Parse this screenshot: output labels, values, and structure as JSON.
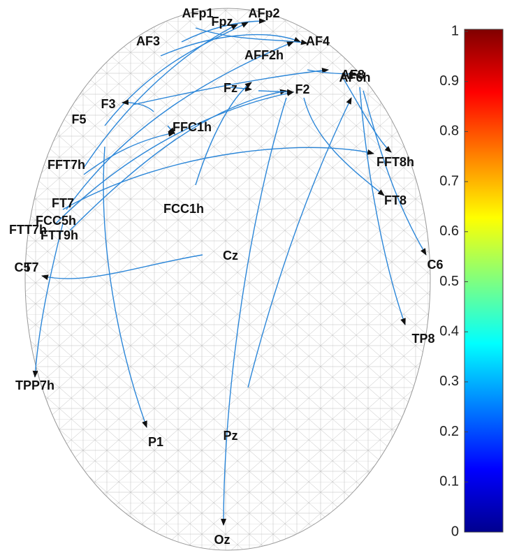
{
  "nodes": [
    {
      "label": "AFp1"
    },
    {
      "label": "Fpz"
    },
    {
      "label": "AFp2"
    },
    {
      "label": "AF3"
    },
    {
      "label": "AF4"
    },
    {
      "label": "AFF2h"
    },
    {
      "label": "AF6h"
    },
    {
      "label": "AF8"
    },
    {
      "label": "Fz"
    },
    {
      "label": "F2"
    },
    {
      "label": "F3"
    },
    {
      "label": "F5"
    },
    {
      "label": "FFC1h"
    },
    {
      "label": "FFT7h"
    },
    {
      "label": "FFT8h"
    },
    {
      "label": "FT7"
    },
    {
      "label": "FT8"
    },
    {
      "label": "FCC5h"
    },
    {
      "label": "FTT7h"
    },
    {
      "label": "FTT9h"
    },
    {
      "label": "FCC1h"
    },
    {
      "label": "Cz"
    },
    {
      "label": "C5"
    },
    {
      "label": "T7"
    },
    {
      "label": "C6"
    },
    {
      "label": "TP8"
    },
    {
      "label": "TPP7h"
    },
    {
      "label": "P1"
    },
    {
      "label": "Pz"
    },
    {
      "label": "Oz"
    }
  ],
  "colorbar": {
    "lim": [
      0,
      1
    ],
    "ticks": [
      0,
      0.1,
      0.2,
      0.3,
      0.4,
      0.5,
      0.6,
      0.7,
      0.8,
      0.9,
      1
    ]
  }
}
